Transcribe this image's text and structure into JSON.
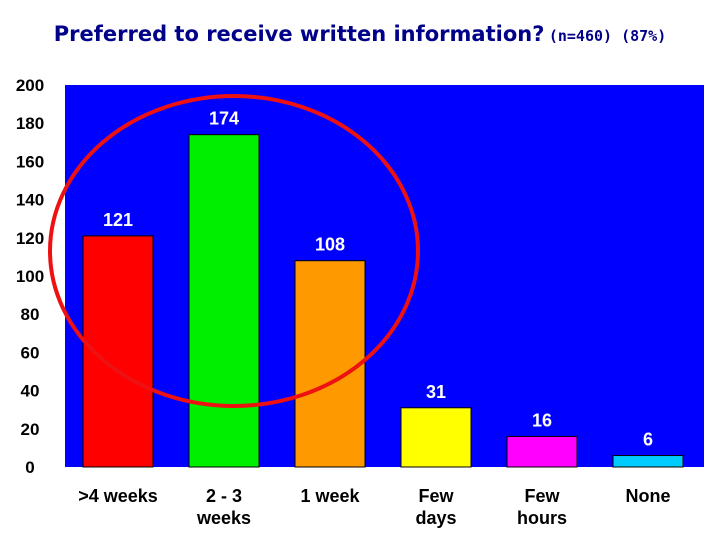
{
  "chart_data": {
    "type": "bar",
    "title": "Preferred to receive written information?",
    "subtitle": "(n=460) (87%)",
    "categories": [
      ">4 weeks",
      "2 - 3 weeks",
      "1 week",
      "Few days",
      "Few hours",
      "None"
    ],
    "category_lines": [
      [
        ">4 weeks"
      ],
      [
        "2 - 3",
        "weeks"
      ],
      [
        "1 week"
      ],
      [
        "Few",
        "days"
      ],
      [
        "Few",
        "hours"
      ],
      [
        "None"
      ]
    ],
    "values": [
      121,
      174,
      108,
      31,
      16,
      6
    ],
    "data_labels": [
      "121",
      "174",
      "108",
      "31",
      "16",
      "6"
    ],
    "bar_colors": [
      "#ff0000",
      "#00ee00",
      "#ff9900",
      "#ffff00",
      "#ff00ff",
      "#00ccff"
    ],
    "plot_background": "#0000ff",
    "highlight_color": "#ee1111",
    "ylim": [
      0,
      200
    ],
    "yticks": [
      0,
      20,
      40,
      60,
      80,
      100,
      120,
      140,
      160,
      180,
      200
    ],
    "ytick_labels": [
      "0",
      "20",
      "40",
      "60",
      "80",
      "100",
      "120",
      "140",
      "160",
      "180",
      "200"
    ],
    "xlabel": "",
    "ylabel": "",
    "grid": false,
    "legend": "none",
    "annotation": "circle highlighting the first three bars"
  }
}
